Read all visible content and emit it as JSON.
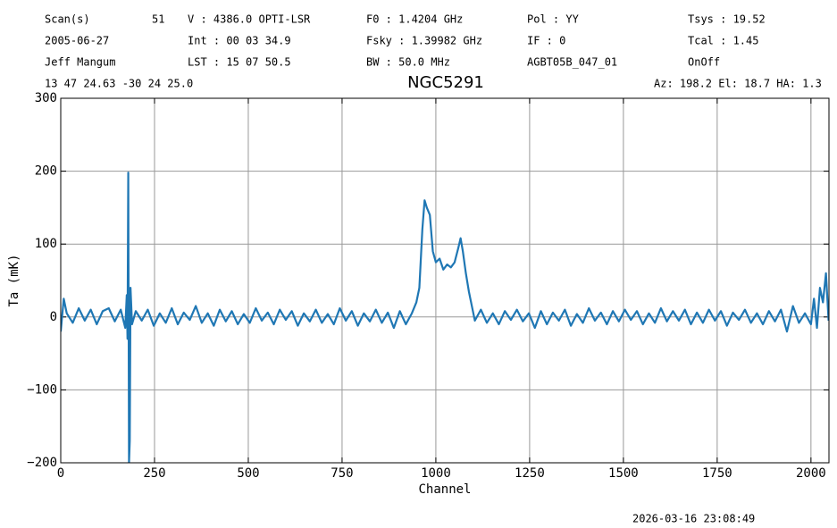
{
  "chart_data": {
    "type": "line",
    "title": "NGC5291",
    "header": [
      "Scan(s)",
      "51",
      "V   : 4386.0 OPTI-LSR",
      "F0   :  1.4204 GHz",
      "Pol :   YY",
      "Tsys   :  19.52",
      "2005-06-27",
      "Int : 00 03 34.9",
      "Fsky :  1.39982 GHz",
      "IF  :    0",
      "Tcal   :  1.45",
      "Jeff Mangum",
      "LST : 15 07 50.5",
      "BW   :  50.0 MHz",
      "AGBT05B_047_01",
      "OnOff",
      "13 47 24.63  -30 24 25.0",
      "Az: 198.2  El: 18.7  HA: 1.3"
    ],
    "footer": "2026-03-16 23:08:49",
    "xlabel": "Channel",
    "ylabel": "Ta (mK)",
    "xlim": [
      0,
      2048
    ],
    "ylim": [
      -200,
      300
    ],
    "xticks": [
      0,
      250,
      500,
      750,
      1000,
      1250,
      1500,
      1750,
      2000
    ],
    "yticks": [
      {
        "value": -200,
        "label": "−200"
      },
      {
        "value": -100,
        "label": "−100"
      },
      0,
      100,
      200,
      300
    ],
    "grid": true,
    "x": [
      0,
      8,
      16,
      32,
      48,
      64,
      80,
      96,
      112,
      128,
      144,
      160,
      172,
      176,
      178,
      180,
      182,
      184,
      186,
      190,
      200,
      216,
      232,
      248,
      264,
      280,
      296,
      312,
      328,
      344,
      360,
      376,
      392,
      408,
      424,
      440,
      456,
      472,
      488,
      504,
      520,
      536,
      552,
      568,
      584,
      600,
      616,
      632,
      648,
      664,
      680,
      696,
      712,
      728,
      744,
      760,
      776,
      792,
      808,
      824,
      840,
      856,
      872,
      888,
      904,
      920,
      936,
      948,
      956,
      964,
      970,
      976,
      984,
      992,
      1000,
      1010,
      1020,
      1030,
      1040,
      1050,
      1060,
      1066,
      1072,
      1080,
      1088,
      1096,
      1104,
      1120,
      1136,
      1152,
      1168,
      1184,
      1200,
      1216,
      1232,
      1248,
      1264,
      1280,
      1296,
      1312,
      1328,
      1344,
      1360,
      1376,
      1392,
      1408,
      1424,
      1440,
      1456,
      1472,
      1488,
      1504,
      1520,
      1536,
      1552,
      1568,
      1584,
      1600,
      1616,
      1632,
      1648,
      1664,
      1680,
      1696,
      1712,
      1728,
      1744,
      1760,
      1776,
      1792,
      1808,
      1824,
      1840,
      1856,
      1872,
      1888,
      1904,
      1920,
      1936,
      1952,
      1968,
      1984,
      2000,
      2008,
      2016,
      2024,
      2032,
      2040,
      2047
    ],
    "series": [
      {
        "color": "#1f77b4",
        "values": [
          -20,
          25,
          5,
          -8,
          12,
          -5,
          10,
          -10,
          8,
          12,
          -6,
          10,
          -15,
          30,
          -30,
          198,
          -200,
          -170,
          40,
          -10,
          8,
          -5,
          10,
          -12,
          5,
          -8,
          12,
          -10,
          6,
          -4,
          15,
          -8,
          5,
          -12,
          10,
          -6,
          8,
          -10,
          4,
          -8,
          12,
          -5,
          6,
          -10,
          10,
          -4,
          8,
          -12,
          5,
          -6,
          10,
          -8,
          4,
          -10,
          12,
          -5,
          8,
          -12,
          5,
          -6,
          10,
          -8,
          6,
          -15,
          8,
          -10,
          5,
          20,
          40,
          120,
          160,
          150,
          140,
          90,
          75,
          80,
          65,
          72,
          68,
          75,
          95,
          108,
          90,
          60,
          35,
          15,
          -5,
          10,
          -8,
          5,
          -10,
          8,
          -4,
          10,
          -6,
          5,
          -15,
          8,
          -10,
          6,
          -5,
          10,
          -12,
          4,
          -8,
          12,
          -5,
          6,
          -10,
          8,
          -6,
          10,
          -4,
          8,
          -10,
          5,
          -8,
          12,
          -6,
          8,
          -5,
          10,
          -10,
          6,
          -8,
          10,
          -5,
          8,
          -12,
          6,
          -4,
          10,
          -8,
          5,
          -10,
          8,
          -6,
          10,
          -20,
          15,
          -8,
          5,
          -10,
          25,
          -15,
          40,
          20,
          60,
          -5
        ]
      }
    ]
  }
}
